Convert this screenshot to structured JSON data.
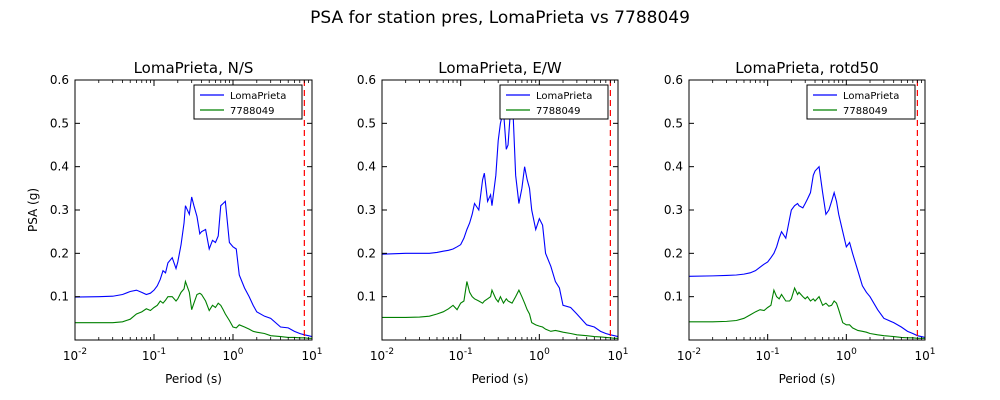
{
  "figure": {
    "title": "PSA for station pres, LomaPrieta vs 7788049"
  },
  "colors": {
    "series1": "#0000ff",
    "series2": "#008000",
    "marker_line": "#ff0000"
  },
  "chart_data": [
    {
      "type": "line",
      "title": "LomaPrieta, N/S",
      "xlabel": "Period (s)",
      "ylabel": "PSA (g)",
      "xscale": "log",
      "xlim": [
        0.01,
        10
      ],
      "ylim": [
        0,
        0.6
      ],
      "yticks": [
        "0.1",
        "0.2",
        "0.3",
        "0.4",
        "0.5",
        "0.6"
      ],
      "xticks": [
        {
          "base": "10",
          "exp": "-2"
        },
        {
          "base": "10",
          "exp": "-1"
        },
        {
          "base": "10",
          "exp": "0"
        },
        {
          "base": "10",
          "exp": "1"
        }
      ],
      "legend": "top-right",
      "vline": {
        "x": 8.0,
        "style": "dashed"
      },
      "series": [
        {
          "name": "LomaPrieta",
          "color": "#0000ff",
          "x": [
            0.01,
            0.02,
            0.03,
            0.04,
            0.05,
            0.06,
            0.07,
            0.08,
            0.09,
            0.1,
            0.11,
            0.12,
            0.13,
            0.14,
            0.15,
            0.17,
            0.19,
            0.2,
            0.22,
            0.24,
            0.25,
            0.28,
            0.3,
            0.32,
            0.35,
            0.38,
            0.4,
            0.45,
            0.5,
            0.55,
            0.6,
            0.65,
            0.7,
            0.75,
            0.8,
            0.9,
            1.0,
            1.1,
            1.2,
            1.4,
            1.6,
            1.8,
            2.0,
            2.5,
            3.0,
            4.0,
            5.0,
            6.0,
            7.0,
            8.0,
            9.0,
            10.0
          ],
          "y": [
            0.099,
            0.1,
            0.101,
            0.105,
            0.112,
            0.115,
            0.11,
            0.105,
            0.108,
            0.115,
            0.125,
            0.14,
            0.16,
            0.155,
            0.178,
            0.19,
            0.165,
            0.18,
            0.22,
            0.27,
            0.31,
            0.29,
            0.33,
            0.31,
            0.285,
            0.245,
            0.25,
            0.255,
            0.21,
            0.23,
            0.225,
            0.24,
            0.31,
            0.315,
            0.32,
            0.225,
            0.215,
            0.21,
            0.15,
            0.12,
            0.1,
            0.08,
            0.065,
            0.055,
            0.05,
            0.03,
            0.028,
            0.02,
            0.015,
            0.012,
            0.01,
            0.008
          ]
        },
        {
          "name": "7788049",
          "color": "#008000",
          "x": [
            0.01,
            0.02,
            0.03,
            0.04,
            0.05,
            0.06,
            0.07,
            0.08,
            0.09,
            0.1,
            0.11,
            0.12,
            0.13,
            0.14,
            0.15,
            0.17,
            0.19,
            0.2,
            0.22,
            0.24,
            0.25,
            0.28,
            0.3,
            0.32,
            0.35,
            0.38,
            0.4,
            0.45,
            0.5,
            0.55,
            0.6,
            0.65,
            0.7,
            0.75,
            0.8,
            0.9,
            1.0,
            1.1,
            1.2,
            1.4,
            1.6,
            1.8,
            2.0,
            2.5,
            3.0,
            4.0,
            5.0,
            6.0,
            7.0,
            8.0,
            9.0,
            10.0
          ],
          "y": [
            0.04,
            0.04,
            0.04,
            0.042,
            0.048,
            0.06,
            0.065,
            0.072,
            0.068,
            0.075,
            0.08,
            0.09,
            0.085,
            0.092,
            0.1,
            0.1,
            0.09,
            0.095,
            0.11,
            0.118,
            0.135,
            0.11,
            0.07,
            0.085,
            0.105,
            0.108,
            0.105,
            0.09,
            0.068,
            0.08,
            0.075,
            0.085,
            0.08,
            0.07,
            0.06,
            0.045,
            0.03,
            0.028,
            0.035,
            0.03,
            0.025,
            0.02,
            0.018,
            0.015,
            0.01,
            0.008,
            0.006,
            0.006,
            0.005,
            0.005,
            0.004,
            0.004
          ]
        }
      ]
    },
    {
      "type": "line",
      "title": "LomaPrieta, E/W",
      "xlabel": "Period (s)",
      "ylabel": "",
      "xscale": "log",
      "xlim": [
        0.01,
        10
      ],
      "ylim": [
        0,
        0.6
      ],
      "yticks": [
        "0.1",
        "0.2",
        "0.3",
        "0.4",
        "0.5",
        "0.6"
      ],
      "xticks": [
        {
          "base": "10",
          "exp": "-2"
        },
        {
          "base": "10",
          "exp": "-1"
        },
        {
          "base": "10",
          "exp": "0"
        },
        {
          "base": "10",
          "exp": "1"
        }
      ],
      "legend": "top-right",
      "vline": {
        "x": 8.0,
        "style": "dashed"
      },
      "series": [
        {
          "name": "LomaPrieta",
          "color": "#0000ff",
          "x": [
            0.01,
            0.02,
            0.03,
            0.04,
            0.05,
            0.06,
            0.07,
            0.08,
            0.09,
            0.1,
            0.11,
            0.12,
            0.13,
            0.14,
            0.15,
            0.17,
            0.19,
            0.2,
            0.22,
            0.24,
            0.25,
            0.28,
            0.3,
            0.32,
            0.35,
            0.38,
            0.4,
            0.45,
            0.5,
            0.55,
            0.6,
            0.65,
            0.7,
            0.75,
            0.8,
            0.9,
            1.0,
            1.1,
            1.2,
            1.4,
            1.6,
            1.8,
            2.0,
            2.5,
            3.0,
            4.0,
            5.0,
            6.0,
            7.0,
            8.0,
            9.0,
            10.0
          ],
          "y": [
            0.198,
            0.2,
            0.2,
            0.2,
            0.202,
            0.205,
            0.207,
            0.21,
            0.215,
            0.22,
            0.235,
            0.255,
            0.27,
            0.29,
            0.315,
            0.3,
            0.37,
            0.385,
            0.32,
            0.335,
            0.31,
            0.38,
            0.46,
            0.5,
            0.53,
            0.44,
            0.45,
            0.58,
            0.38,
            0.315,
            0.35,
            0.4,
            0.37,
            0.35,
            0.3,
            0.255,
            0.28,
            0.265,
            0.2,
            0.17,
            0.135,
            0.12,
            0.08,
            0.075,
            0.06,
            0.035,
            0.03,
            0.02,
            0.015,
            0.012,
            0.01,
            0.008
          ]
        },
        {
          "name": "7788049",
          "color": "#008000",
          "x": [
            0.01,
            0.02,
            0.03,
            0.04,
            0.05,
            0.06,
            0.07,
            0.08,
            0.09,
            0.1,
            0.11,
            0.12,
            0.13,
            0.14,
            0.15,
            0.17,
            0.19,
            0.2,
            0.22,
            0.24,
            0.25,
            0.28,
            0.3,
            0.32,
            0.35,
            0.38,
            0.4,
            0.45,
            0.5,
            0.55,
            0.6,
            0.65,
            0.7,
            0.75,
            0.8,
            0.9,
            1.0,
            1.1,
            1.2,
            1.4,
            1.6,
            1.8,
            2.0,
            2.5,
            3.0,
            4.0,
            5.0,
            6.0,
            7.0,
            8.0,
            9.0,
            10.0
          ],
          "y": [
            0.052,
            0.052,
            0.053,
            0.055,
            0.06,
            0.065,
            0.072,
            0.08,
            0.07,
            0.085,
            0.09,
            0.135,
            0.11,
            0.1,
            0.095,
            0.09,
            0.085,
            0.09,
            0.095,
            0.1,
            0.115,
            0.095,
            0.088,
            0.1,
            0.085,
            0.095,
            0.09,
            0.085,
            0.1,
            0.115,
            0.1,
            0.085,
            0.07,
            0.06,
            0.04,
            0.035,
            0.032,
            0.03,
            0.025,
            0.02,
            0.022,
            0.02,
            0.018,
            0.015,
            0.012,
            0.01,
            0.008,
            0.007,
            0.006,
            0.005,
            0.004,
            0.004
          ]
        }
      ]
    },
    {
      "type": "line",
      "title": "LomaPrieta, rotd50",
      "xlabel": "Period (s)",
      "ylabel": "",
      "xscale": "log",
      "xlim": [
        0.01,
        10
      ],
      "ylim": [
        0,
        0.6
      ],
      "yticks": [
        "0.1",
        "0.2",
        "0.3",
        "0.4",
        "0.5",
        "0.6"
      ],
      "xticks": [
        {
          "base": "10",
          "exp": "-2"
        },
        {
          "base": "10",
          "exp": "-1"
        },
        {
          "base": "10",
          "exp": "0"
        },
        {
          "base": "10",
          "exp": "1"
        }
      ],
      "legend": "top-right",
      "vline": {
        "x": 8.0,
        "style": "dashed"
      },
      "series": [
        {
          "name": "LomaPrieta",
          "color": "#0000ff",
          "x": [
            0.01,
            0.02,
            0.03,
            0.04,
            0.05,
            0.06,
            0.07,
            0.08,
            0.09,
            0.1,
            0.11,
            0.12,
            0.13,
            0.14,
            0.15,
            0.17,
            0.19,
            0.2,
            0.22,
            0.24,
            0.25,
            0.28,
            0.3,
            0.32,
            0.35,
            0.38,
            0.4,
            0.45,
            0.5,
            0.55,
            0.6,
            0.65,
            0.7,
            0.75,
            0.8,
            0.9,
            1.0,
            1.1,
            1.2,
            1.4,
            1.6,
            1.8,
            2.0,
            2.5,
            3.0,
            4.0,
            5.0,
            6.0,
            7.0,
            8.0,
            9.0,
            10.0
          ],
          "y": [
            0.147,
            0.148,
            0.149,
            0.15,
            0.152,
            0.155,
            0.16,
            0.168,
            0.175,
            0.18,
            0.19,
            0.2,
            0.215,
            0.235,
            0.25,
            0.235,
            0.28,
            0.3,
            0.31,
            0.315,
            0.31,
            0.305,
            0.315,
            0.325,
            0.34,
            0.38,
            0.39,
            0.4,
            0.34,
            0.29,
            0.3,
            0.32,
            0.34,
            0.32,
            0.29,
            0.25,
            0.215,
            0.225,
            0.2,
            0.16,
            0.125,
            0.11,
            0.1,
            0.07,
            0.05,
            0.04,
            0.03,
            0.02,
            0.015,
            0.01,
            0.008,
            0.006
          ]
        },
        {
          "name": "7788049",
          "color": "#008000",
          "x": [
            0.01,
            0.02,
            0.03,
            0.04,
            0.05,
            0.06,
            0.07,
            0.08,
            0.09,
            0.1,
            0.11,
            0.12,
            0.13,
            0.14,
            0.15,
            0.17,
            0.19,
            0.2,
            0.22,
            0.24,
            0.25,
            0.28,
            0.3,
            0.32,
            0.35,
            0.38,
            0.4,
            0.45,
            0.5,
            0.55,
            0.6,
            0.65,
            0.7,
            0.75,
            0.8,
            0.9,
            1.0,
            1.1,
            1.2,
            1.4,
            1.6,
            1.8,
            2.0,
            2.5,
            3.0,
            4.0,
            5.0,
            6.0,
            7.0,
            8.0,
            9.0,
            10.0
          ],
          "y": [
            0.042,
            0.042,
            0.043,
            0.045,
            0.05,
            0.058,
            0.065,
            0.07,
            0.068,
            0.075,
            0.08,
            0.115,
            0.1,
            0.095,
            0.105,
            0.09,
            0.09,
            0.095,
            0.12,
            0.105,
            0.11,
            0.1,
            0.095,
            0.1,
            0.09,
            0.095,
            0.09,
            0.1,
            0.08,
            0.085,
            0.078,
            0.08,
            0.09,
            0.085,
            0.07,
            0.04,
            0.035,
            0.035,
            0.028,
            0.022,
            0.02,
            0.018,
            0.015,
            0.012,
            0.01,
            0.008,
            0.006,
            0.005,
            0.005,
            0.004,
            0.004,
            0.004
          ]
        }
      ]
    }
  ]
}
